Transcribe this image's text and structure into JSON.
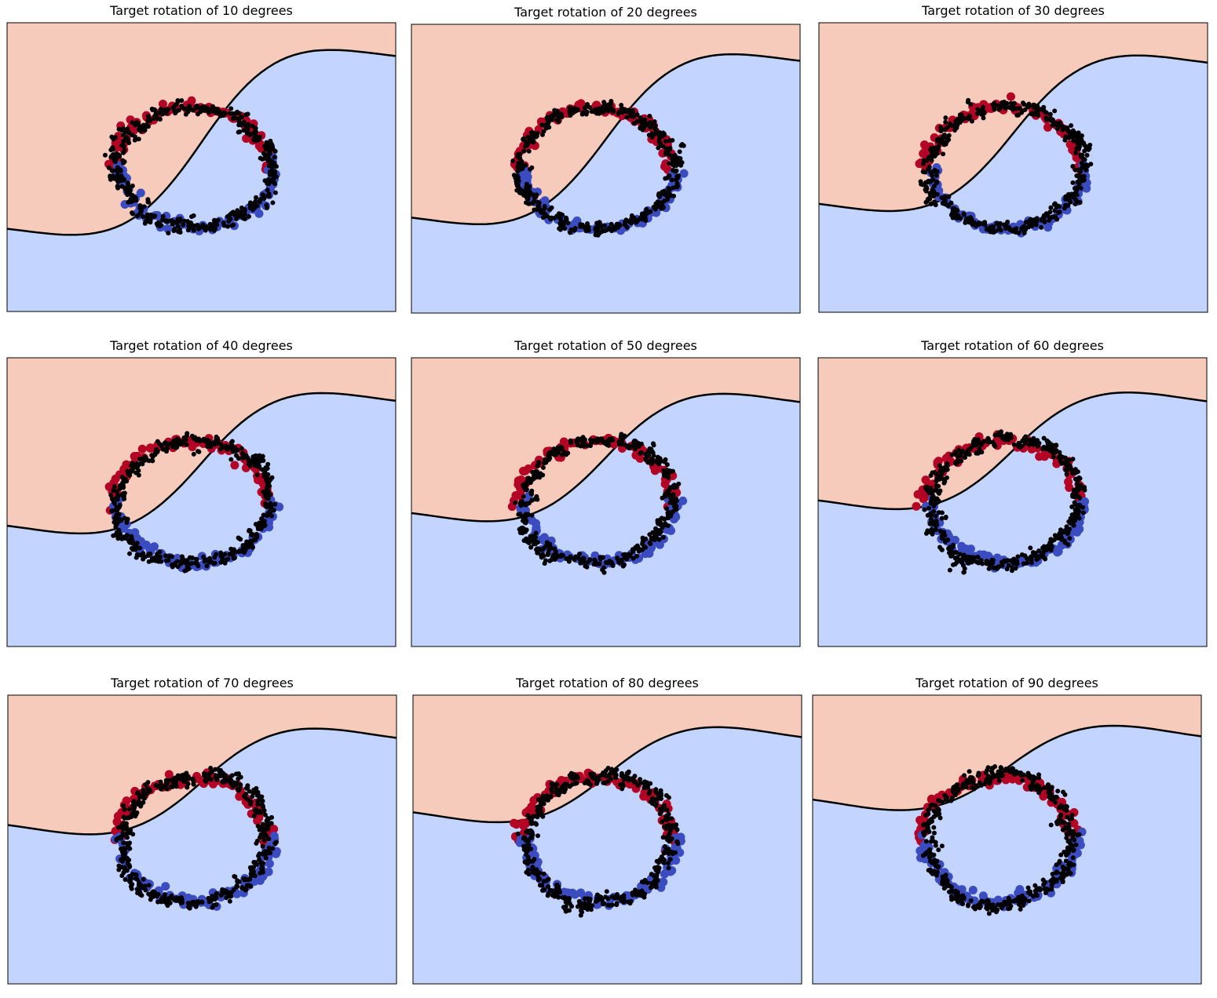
{
  "colors": {
    "class_a": "#b40426",
    "class_b": "#3b4cc0",
    "target": "#000000",
    "region_a": "#f6cbbc",
    "region_b": "#c3d4fe",
    "boundary": "#000000"
  },
  "chart_data": [
    {
      "type": "scatter",
      "title": "Target rotation of 10 degrees",
      "rotation_deg": 10,
      "xlim": [
        -1,
        1
      ],
      "ylim": [
        -1,
        1
      ],
      "grid": false,
      "legend": "none",
      "series": [
        {
          "kind": "source_class_a",
          "color": "#b40426"
        },
        {
          "kind": "source_class_b",
          "color": "#3b4cc0"
        },
        {
          "kind": "target_unlabeled",
          "color": "#000000"
        }
      ]
    },
    {
      "type": "scatter",
      "title": "Target rotation of 20 degrees",
      "rotation_deg": 20,
      "xlim": [
        -1,
        1
      ],
      "ylim": [
        -1,
        1
      ],
      "grid": false,
      "legend": "none",
      "series": [
        {
          "kind": "source_class_a",
          "color": "#b40426"
        },
        {
          "kind": "source_class_b",
          "color": "#3b4cc0"
        },
        {
          "kind": "target_unlabeled",
          "color": "#000000"
        }
      ]
    },
    {
      "type": "scatter",
      "title": "Target rotation of 30 degrees",
      "rotation_deg": 30,
      "xlim": [
        -1,
        1
      ],
      "ylim": [
        -1,
        1
      ],
      "grid": false,
      "legend": "none",
      "series": [
        {
          "kind": "source_class_a",
          "color": "#b40426"
        },
        {
          "kind": "source_class_b",
          "color": "#3b4cc0"
        },
        {
          "kind": "target_unlabeled",
          "color": "#000000"
        }
      ]
    },
    {
      "type": "scatter",
      "title": "Target rotation of 40 degrees",
      "rotation_deg": 40,
      "xlim": [
        -1,
        1
      ],
      "ylim": [
        -1,
        1
      ],
      "grid": false,
      "legend": "none",
      "series": [
        {
          "kind": "source_class_a",
          "color": "#b40426"
        },
        {
          "kind": "source_class_b",
          "color": "#3b4cc0"
        },
        {
          "kind": "target_unlabeled",
          "color": "#000000"
        }
      ]
    },
    {
      "type": "scatter",
      "title": "Target rotation of 50 degrees",
      "rotation_deg": 50,
      "xlim": [
        -1,
        1
      ],
      "ylim": [
        -1,
        1
      ],
      "grid": false,
      "legend": "none",
      "series": [
        {
          "kind": "source_class_a",
          "color": "#b40426"
        },
        {
          "kind": "source_class_b",
          "color": "#3b4cc0"
        },
        {
          "kind": "target_unlabeled",
          "color": "#000000"
        }
      ]
    },
    {
      "type": "scatter",
      "title": "Target rotation of 60 degrees",
      "rotation_deg": 60,
      "xlim": [
        -1,
        1
      ],
      "ylim": [
        -1,
        1
      ],
      "grid": false,
      "legend": "none",
      "series": [
        {
          "kind": "source_class_a",
          "color": "#b40426"
        },
        {
          "kind": "source_class_b",
          "color": "#3b4cc0"
        },
        {
          "kind": "target_unlabeled",
          "color": "#000000"
        }
      ]
    },
    {
      "type": "scatter",
      "title": "Target rotation of 70 degrees",
      "rotation_deg": 70,
      "xlim": [
        -1,
        1
      ],
      "ylim": [
        -1,
        1
      ],
      "grid": false,
      "legend": "none",
      "series": [
        {
          "kind": "source_class_a",
          "color": "#b40426"
        },
        {
          "kind": "source_class_b",
          "color": "#3b4cc0"
        },
        {
          "kind": "target_unlabeled",
          "color": "#000000"
        }
      ]
    },
    {
      "type": "scatter",
      "title": "Target rotation of 80 degrees",
      "rotation_deg": 80,
      "xlim": [
        -1,
        1
      ],
      "ylim": [
        -1,
        1
      ],
      "grid": false,
      "legend": "none",
      "series": [
        {
          "kind": "source_class_a",
          "color": "#b40426"
        },
        {
          "kind": "source_class_b",
          "color": "#3b4cc0"
        },
        {
          "kind": "target_unlabeled",
          "color": "#000000"
        }
      ]
    },
    {
      "type": "scatter",
      "title": "Target rotation of 90 degrees",
      "rotation_deg": 90,
      "xlim": [
        -1,
        1
      ],
      "ylim": [
        -1,
        1
      ],
      "grid": false,
      "legend": "none",
      "series": [
        {
          "kind": "source_class_a",
          "color": "#b40426"
        },
        {
          "kind": "source_class_b",
          "color": "#3b4cc0"
        },
        {
          "kind": "target_unlabeled",
          "color": "#000000"
        }
      ]
    }
  ]
}
